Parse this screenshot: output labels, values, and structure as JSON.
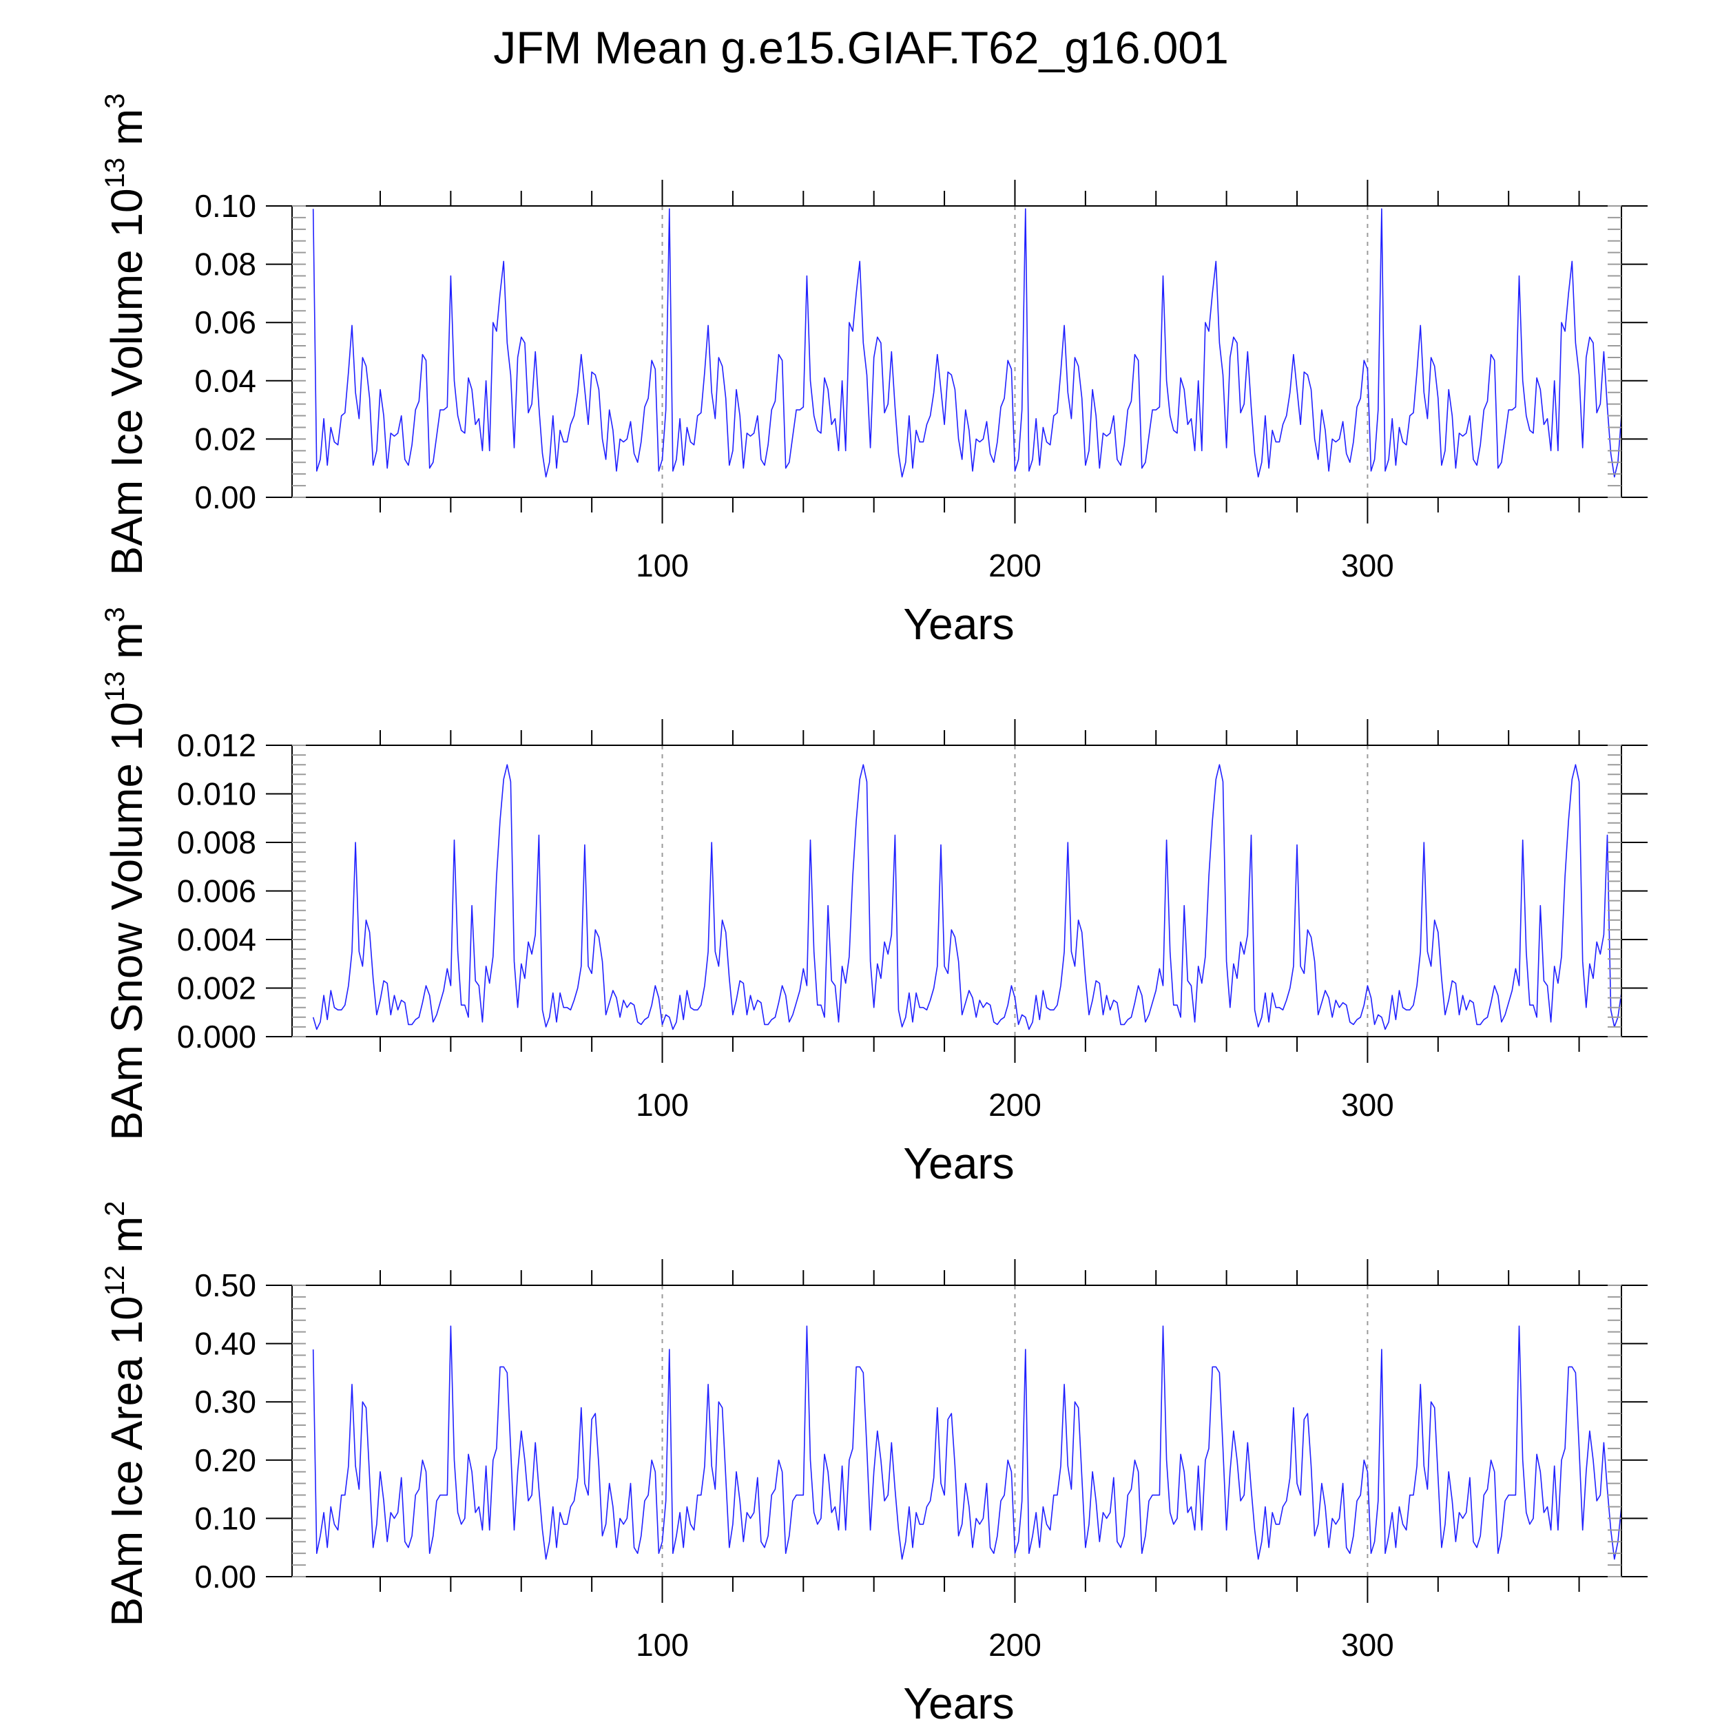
{
  "title": "JFM Mean g.e15.GIAF.T62_g16.001",
  "colors": {
    "series": "#2020ff",
    "axis": "#000000",
    "grid": "#9a9a9a"
  },
  "chart_data": [
    {
      "type": "line",
      "name": "panel-ice-volume",
      "ylabel_main": "BAm Ice Volume 10",
      "ylabel_exp": "13",
      "ylabel_unit": " m",
      "ylabel_unit_exp": "3",
      "xlabel": "Years",
      "xlim": [
        -5,
        372
      ],
      "ylim": [
        0,
        0.1
      ],
      "yticks": [
        0.0,
        0.02,
        0.04,
        0.06,
        0.08,
        0.1
      ],
      "ytick_labels": [
        "0.00",
        "0.02",
        "0.04",
        "0.06",
        "0.08",
        "0.10"
      ],
      "xticks": [
        100,
        200,
        300
      ],
      "xtick_labels": [
        "100",
        "200",
        "300"
      ],
      "x_start": 1,
      "cycle": [
        0.099,
        0.009,
        0.013,
        0.027,
        0.011,
        0.024,
        0.019,
        0.018,
        0.028,
        0.029,
        0.043,
        0.059,
        0.036,
        0.027,
        0.048,
        0.045,
        0.034,
        0.011,
        0.016,
        0.037,
        0.028,
        0.01,
        0.022,
        0.021,
        0.022,
        0.028,
        0.013,
        0.011,
        0.018,
        0.03,
        0.033,
        0.049,
        0.047,
        0.01,
        0.012,
        0.021,
        0.03,
        0.03,
        0.031,
        0.076,
        0.04,
        0.028,
        0.023,
        0.022,
        0.041,
        0.037,
        0.025,
        0.027,
        0.016,
        0.04,
        0.016,
        0.06,
        0.057,
        0.07,
        0.081,
        0.053,
        0.042,
        0.017,
        0.048,
        0.055,
        0.053,
        0.029,
        0.032,
        0.05,
        0.031,
        0.015,
        0.007,
        0.012,
        0.028,
        0.01,
        0.023,
        0.019,
        0.019,
        0.025,
        0.028,
        0.036,
        0.049,
        0.037,
        0.025,
        0.043,
        0.042,
        0.037,
        0.02,
        0.013,
        0.03,
        0.023,
        0.009,
        0.02,
        0.019,
        0.02,
        0.026,
        0.015,
        0.012,
        0.019,
        0.031,
        0.034,
        0.047,
        0.044,
        0.009,
        0.013,
        0.03
      ]
    },
    {
      "type": "line",
      "name": "panel-snow-volume",
      "ylabel_main": "BAm Snow Volume 10",
      "ylabel_exp": "13",
      "ylabel_unit": " m",
      "ylabel_unit_exp": "3",
      "xlabel": "Years",
      "xlim": [
        -5,
        372
      ],
      "ylim": [
        0,
        0.012
      ],
      "yticks": [
        0.0,
        0.002,
        0.004,
        0.006,
        0.008,
        0.01,
        0.012
      ],
      "ytick_labels": [
        "0.000",
        "0.002",
        "0.004",
        "0.006",
        "0.008",
        "0.010",
        "0.012"
      ],
      "xticks": [
        100,
        200,
        300
      ],
      "xtick_labels": [
        "100",
        "200",
        "300"
      ],
      "x_start": 1,
      "cycle": [
        0.0008,
        0.0003,
        0.0006,
        0.0017,
        0.0007,
        0.0019,
        0.0012,
        0.0011,
        0.0011,
        0.0013,
        0.0021,
        0.0035,
        0.008,
        0.0035,
        0.0029,
        0.0048,
        0.0043,
        0.0024,
        0.0009,
        0.0015,
        0.0023,
        0.0022,
        0.0009,
        0.0017,
        0.0011,
        0.0015,
        0.0014,
        0.0005,
        0.0005,
        0.0007,
        0.0008,
        0.0014,
        0.0021,
        0.0017,
        0.0006,
        0.0009,
        0.0014,
        0.0019,
        0.0028,
        0.0021,
        0.0081,
        0.0035,
        0.0013,
        0.0013,
        0.0008,
        0.0054,
        0.0023,
        0.0021,
        0.0006,
        0.0029,
        0.0022,
        0.0033,
        0.0066,
        0.0089,
        0.0106,
        0.0112,
        0.0105,
        0.0031,
        0.0012,
        0.003,
        0.0024,
        0.0039,
        0.0034,
        0.0042,
        0.0083,
        0.0011,
        0.0004,
        0.0008,
        0.0018,
        0.0006,
        0.0018,
        0.0012,
        0.0012,
        0.0011,
        0.0015,
        0.002,
        0.0029,
        0.0079,
        0.0029,
        0.0026,
        0.0044,
        0.0041,
        0.0031,
        0.0009,
        0.0014,
        0.0019,
        0.0016,
        0.0008,
        0.0015,
        0.0012,
        0.0014,
        0.0013,
        0.0006,
        0.0005,
        0.0007,
        0.0008,
        0.0013,
        0.0021,
        0.0016,
        0.0005,
        0.0009
      ]
    },
    {
      "type": "line",
      "name": "panel-ice-area",
      "ylabel_main": "BAm Ice Area 10",
      "ylabel_exp": "12",
      "ylabel_unit": " m",
      "ylabel_unit_exp": "2",
      "xlabel": "Years",
      "xlim": [
        -5,
        372
      ],
      "ylim": [
        0,
        0.5
      ],
      "yticks": [
        0.0,
        0.1,
        0.2,
        0.3,
        0.4,
        0.5
      ],
      "ytick_labels": [
        "0.00",
        "0.10",
        "0.20",
        "0.30",
        "0.40",
        "0.50"
      ],
      "xticks": [
        100,
        200,
        300
      ],
      "xtick_labels": [
        "100",
        "200",
        "300"
      ],
      "x_start": 1,
      "cycle": [
        0.39,
        0.04,
        0.07,
        0.11,
        0.05,
        0.12,
        0.09,
        0.08,
        0.14,
        0.14,
        0.19,
        0.33,
        0.19,
        0.15,
        0.3,
        0.29,
        0.17,
        0.05,
        0.09,
        0.18,
        0.13,
        0.06,
        0.11,
        0.1,
        0.11,
        0.17,
        0.06,
        0.05,
        0.07,
        0.14,
        0.15,
        0.2,
        0.18,
        0.04,
        0.07,
        0.13,
        0.14,
        0.14,
        0.14,
        0.43,
        0.2,
        0.11,
        0.09,
        0.1,
        0.21,
        0.18,
        0.11,
        0.12,
        0.08,
        0.19,
        0.08,
        0.2,
        0.22,
        0.36,
        0.36,
        0.35,
        0.22,
        0.08,
        0.18,
        0.25,
        0.2,
        0.13,
        0.14,
        0.23,
        0.15,
        0.08,
        0.03,
        0.06,
        0.12,
        0.05,
        0.11,
        0.09,
        0.09,
        0.12,
        0.13,
        0.17,
        0.29,
        0.16,
        0.14,
        0.27,
        0.28,
        0.19,
        0.07,
        0.09,
        0.16,
        0.12,
        0.05,
        0.1,
        0.09,
        0.1,
        0.16,
        0.05,
        0.04,
        0.07,
        0.13,
        0.14,
        0.2,
        0.18,
        0.04,
        0.06,
        0.13
      ]
    }
  ]
}
